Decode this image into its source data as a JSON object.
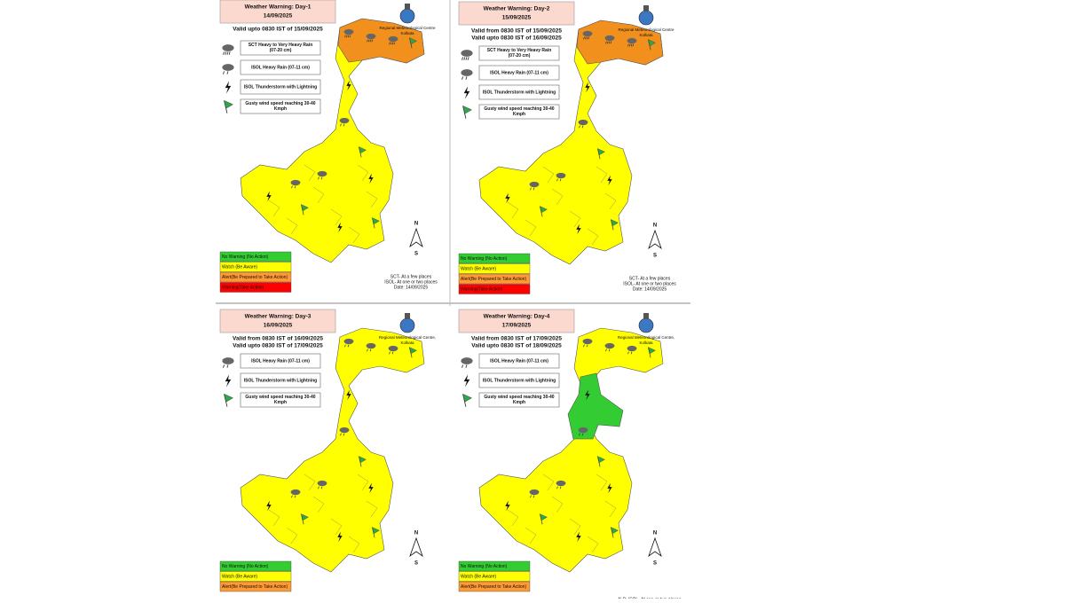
{
  "panels": [
    {
      "title": "Weather Warning: Day-1",
      "date": "14/09/2025",
      "validity": [
        "Valid upto 0830 IST of 15/09/2025"
      ],
      "hazards": [
        "SCT Heavy to Very Heavy Rain (07-20 cm)",
        "ISOL Heavy Rain (07-11 cm)",
        "ISOL Thunderstorm with Lightning",
        "Gusty wind speed reaching 30-40 Kmph"
      ],
      "centre": [
        "Regional Meteorological Centre",
        "Kolkata"
      ],
      "levels": [
        {
          "label": "No Warning (No Action)",
          "color": "#33cc33"
        },
        {
          "label": "Watch (Be Aware)",
          "color": "#ffff00"
        },
        {
          "label": "Alert(Be Prepared to Take Action)",
          "color": "#ff9933"
        },
        {
          "label": "Warning(Take Action)",
          "color": "#ff0000"
        }
      ],
      "notes": [
        "SCT- At a few places",
        "ISOL- At one or two places",
        "Date: 14/09/2025"
      ],
      "compass": [
        "N",
        "S"
      ],
      "highlight_color": "#f2901e"
    },
    {
      "title": "Weather Warning: Day-2",
      "date": "15/09/2025",
      "validity": [
        "Valid from 0830 IST of 15/09/2025",
        "Valid upto 0830 IST of 16/09/2025"
      ],
      "hazards": [
        "SCT Heavy to Very Heavy Rain (07-20 cm)",
        "ISOL Heavy Rain (07-11 cm)",
        "ISOL Thunderstorm with Lightning",
        "Gusty wind speed reaching 30-40 Kmph"
      ],
      "centre": [
        "Regional Meteorological Centre",
        "Kolkata"
      ],
      "levels": [
        {
          "label": "No Warning (No Action)",
          "color": "#33cc33"
        },
        {
          "label": "Watch (Be Aware)",
          "color": "#ffff00"
        },
        {
          "label": "Alert(Be Prepared to Take Action)",
          "color": "#ff9933"
        },
        {
          "label": "Warning(Take Action)",
          "color": "#ff0000"
        }
      ],
      "notes": [
        "SCT- At a few places",
        "ISOL- At one or two places",
        "Date: 14/09/2025"
      ],
      "compass": [
        "N",
        "S"
      ],
      "highlight_color": "#f2901e"
    },
    {
      "title": "Weather Warning: Day-3",
      "date": "16/09/2025",
      "validity": [
        "Valid from 0830 IST of 16/09/2025",
        "Valid upto 0830 IST of 17/09/2025"
      ],
      "hazards": [
        "ISOL Heavy Rain (07-11 cm)",
        "ISOL Thunderstorm with Lightning",
        "Gusty wind speed reaching 30-40 Kmph"
      ],
      "centre": [
        "Regional Meteorological Centre,",
        "Kolkata"
      ],
      "levels": [
        {
          "label": "No Warning (No Action)",
          "color": "#33cc33"
        },
        {
          "label": "Watch (Be Aware)",
          "color": "#ffff00"
        },
        {
          "label": "Alert(Be Prepared to Take Action)",
          "color": "#ff9933"
        }
      ],
      "notes": [],
      "compass": [
        "N",
        "S"
      ]
    },
    {
      "title": "Weather Warning: Day-4",
      "date": "17/09/2025",
      "validity": [
        "Valid from 0830 IST of 17/09/2025",
        "Valid upto 0830 IST of 18/09/2025"
      ],
      "hazards": [
        "ISOL Heavy Rain (07-11 cm)",
        "ISOL Thunderstorm with Lightning",
        "Gusty wind speed reaching 30-40 Kmph"
      ],
      "centre": [
        "Regional Meteorological Centre,",
        "Kolkata"
      ],
      "levels": [
        {
          "label": "No Warning (No Action)",
          "color": "#33cc33"
        },
        {
          "label": "Watch (Be Aware)",
          "color": "#ffff00"
        },
        {
          "label": "Alert(Be Prepared to Take Action)",
          "color": "#ff9933"
        }
      ],
      "notes": [
        "N.B: ISOL- At one or two places"
      ],
      "compass": [
        "N",
        "S"
      ],
      "highlight_color": "#33cc33"
    }
  ]
}
